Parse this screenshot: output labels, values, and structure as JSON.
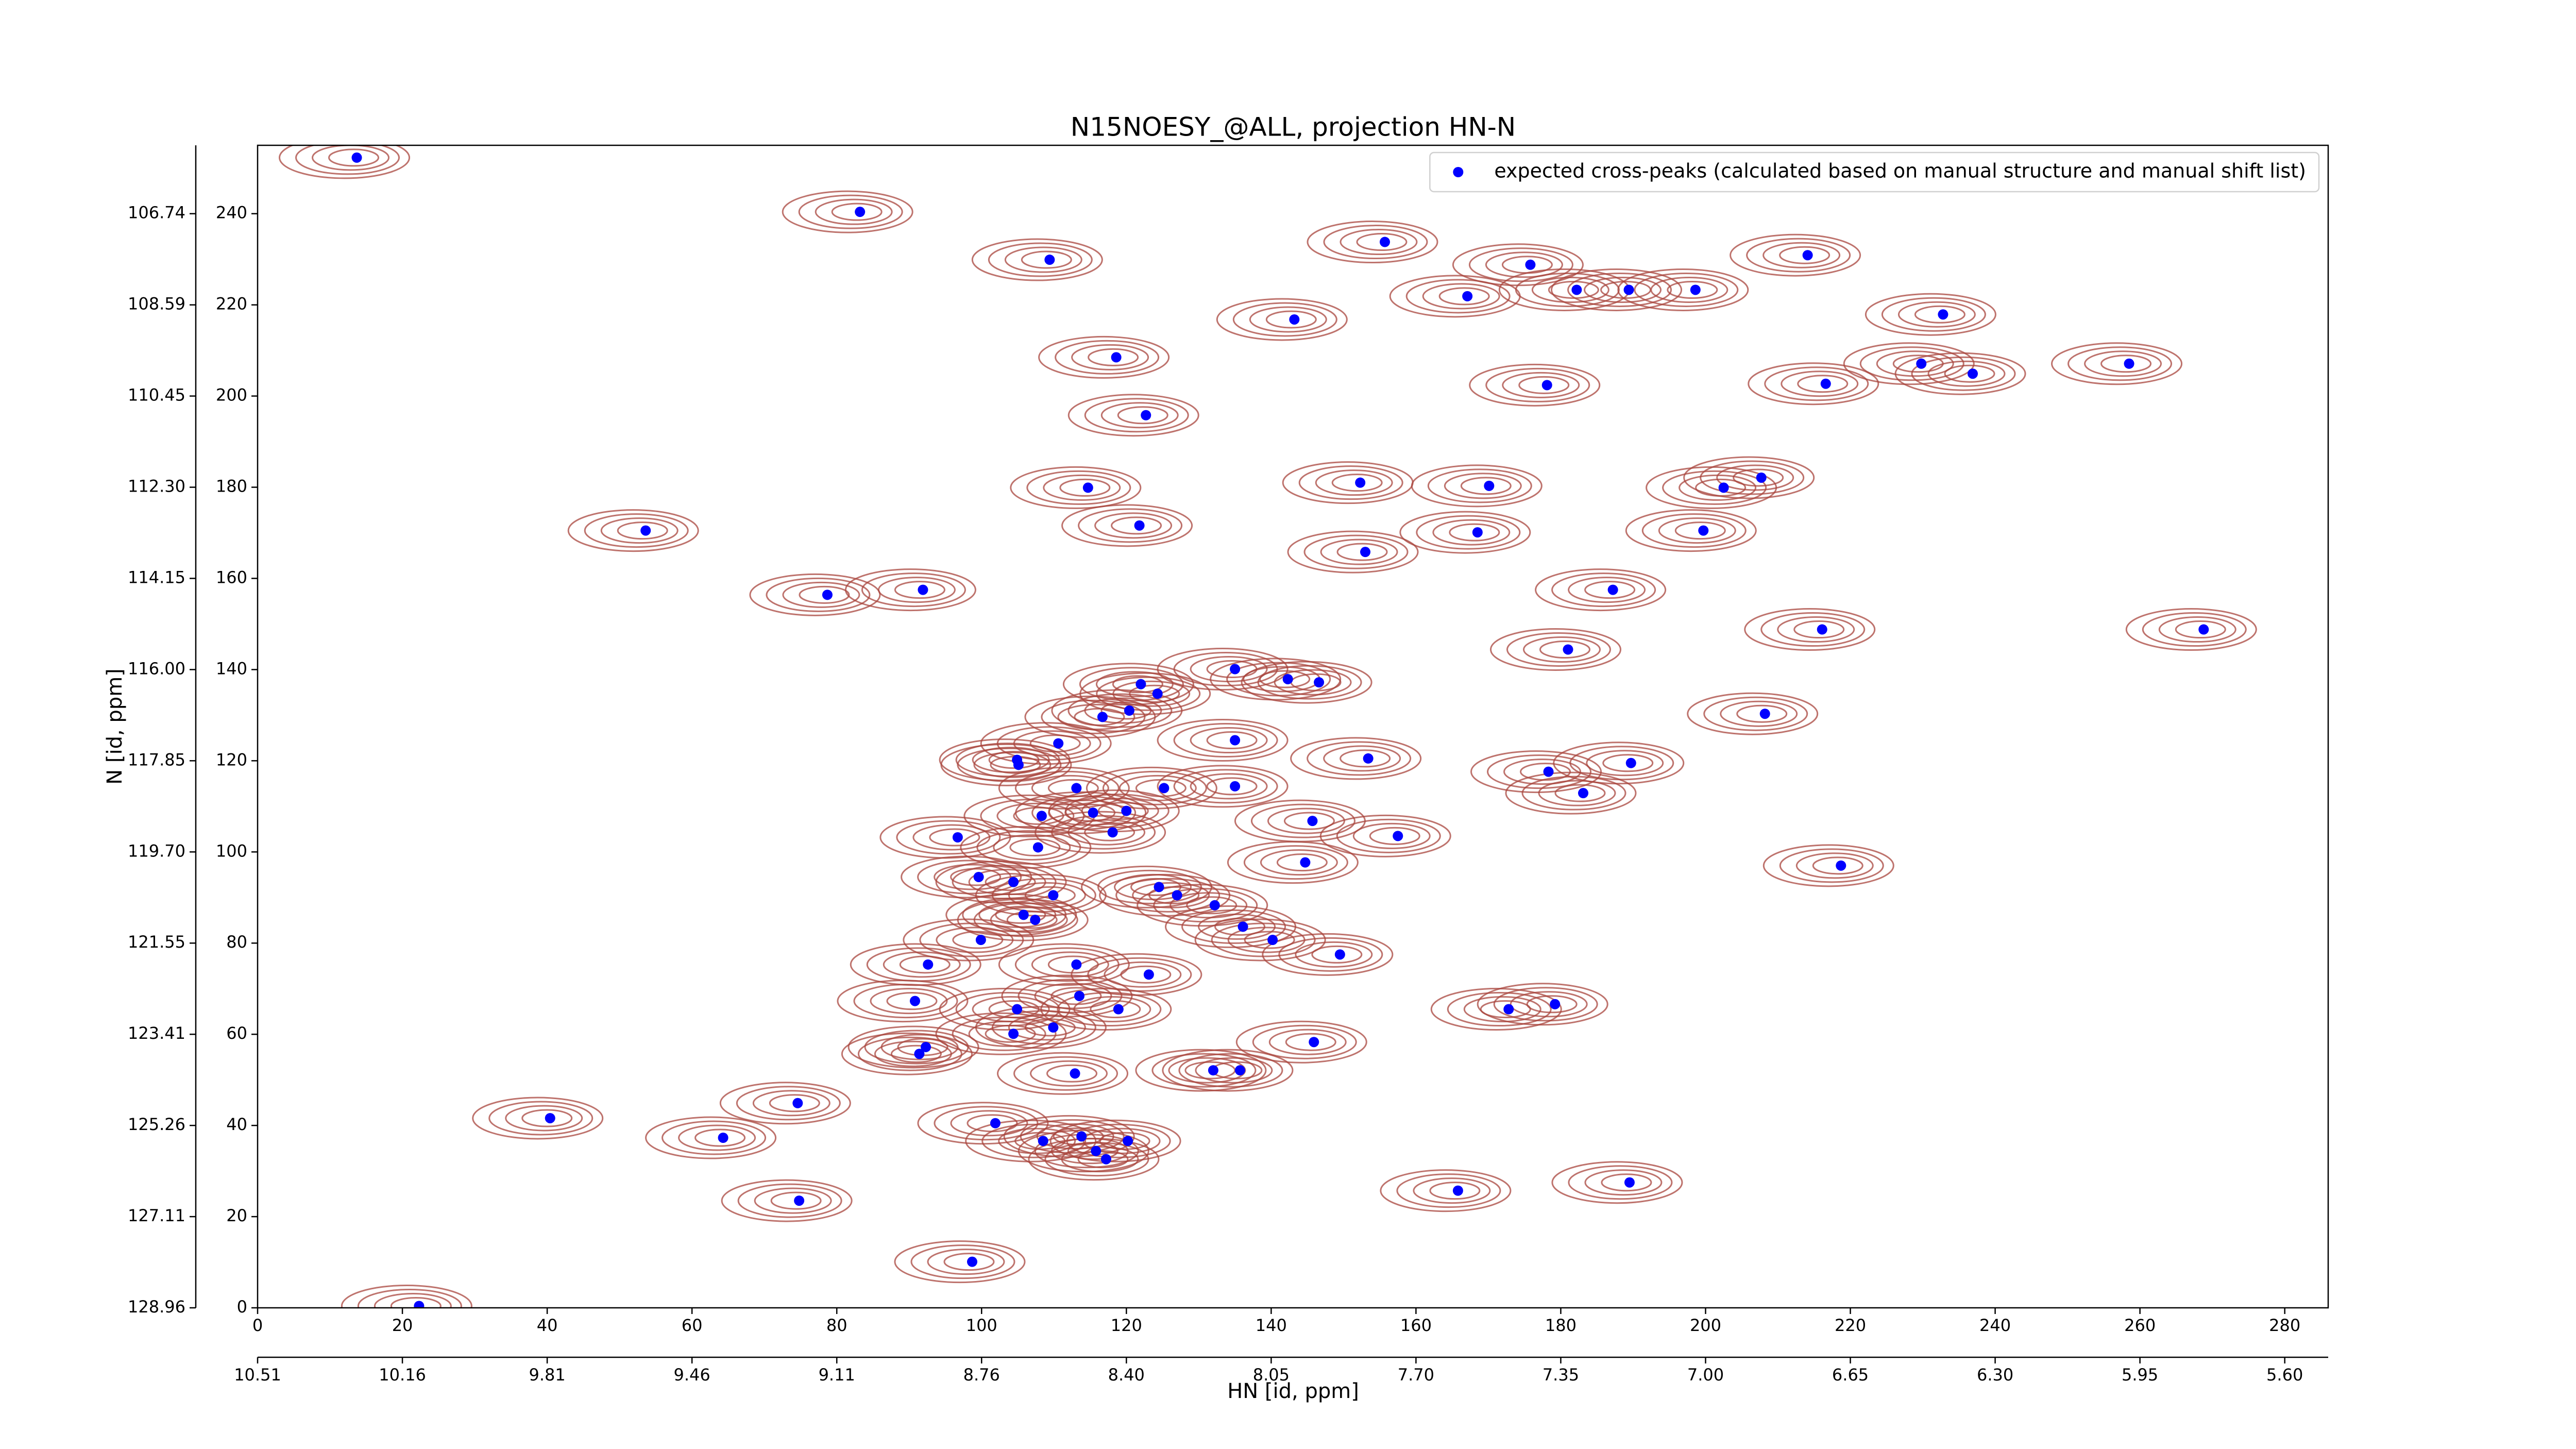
{
  "chart_data": {
    "type": "scatter",
    "title": "N15NOESY_@ALL, projection HN-N",
    "xlabel": "HN [id, ppm]",
    "ylabel": "N [id, ppm]",
    "xlim": [
      0,
      286
    ],
    "ylim": [
      0,
      255
    ],
    "xticks": [
      0,
      20,
      40,
      60,
      80,
      100,
      120,
      140,
      160,
      180,
      200,
      220,
      240,
      260,
      280
    ],
    "yticks": [
      0,
      20,
      40,
      60,
      80,
      100,
      120,
      140,
      160,
      180,
      200,
      220,
      240
    ],
    "x2ticks": [
      {
        "value": 0,
        "label": "10.51"
      },
      {
        "value": 20,
        "label": "10.16"
      },
      {
        "value": 40,
        "label": "9.81"
      },
      {
        "value": 60,
        "label": "9.46"
      },
      {
        "value": 80,
        "label": "9.11"
      },
      {
        "value": 100,
        "label": "8.76"
      },
      {
        "value": 120,
        "label": "8.40"
      },
      {
        "value": 140,
        "label": "8.05"
      },
      {
        "value": 160,
        "label": "7.70"
      },
      {
        "value": 180,
        "label": "7.35"
      },
      {
        "value": 200,
        "label": "7.00"
      },
      {
        "value": 220,
        "label": "6.65"
      },
      {
        "value": 240,
        "label": "6.30"
      },
      {
        "value": 260,
        "label": "5.95"
      },
      {
        "value": 280,
        "label": "5.60"
      }
    ],
    "y2ticks": [
      {
        "value": 0,
        "label": "128.96"
      },
      {
        "value": 20,
        "label": "127.11"
      },
      {
        "value": 40,
        "label": "125.26"
      },
      {
        "value": 60,
        "label": "123.41"
      },
      {
        "value": 80,
        "label": "121.55"
      },
      {
        "value": 100,
        "label": "119.70"
      },
      {
        "value": 120,
        "label": "117.85"
      },
      {
        "value": 140,
        "label": "116.00"
      },
      {
        "value": 160,
        "label": "114.15"
      },
      {
        "value": 180,
        "label": "112.30"
      },
      {
        "value": 200,
        "label": "110.45"
      },
      {
        "value": 220,
        "label": "108.59"
      },
      {
        "value": 240,
        "label": "106.74"
      }
    ],
    "legend": "upper right",
    "contour_color": "#a8443c",
    "series": [
      {
        "name": "expected cross-peaks (calculated based on manual structure and manual shift list)",
        "color": "#0000ff",
        "x": [
          13.7,
          83.2,
          109.4,
          155.7,
          175.8,
          167.1,
          182.2,
          189.4,
          198.6,
          214.1,
          143.2,
          232.8,
          118.6,
          229.8,
          236.9,
          258.5,
          178.1,
          216.6,
          122.7,
          114.7,
          152.3,
          170.1,
          202.5,
          207.7,
          53.6,
          121.8,
          168.5,
          199.7,
          153.0,
          78.7,
          91.9,
          187.2,
          216.1,
          268.8,
          181.0,
          135.0,
          142.3,
          146.6,
          122.0,
          124.3,
          120.4,
          116.7,
          208.2,
          135.0,
          110.6,
          104.9,
          105.1,
          153.4,
          178.3,
          189.7,
          183.1,
          135.0,
          113.1,
          125.2,
          115.4,
          120.0,
          108.3,
          118.1,
          145.7,
          157.5,
          96.7,
          107.8,
          144.7,
          218.7,
          99.6,
          104.4,
          124.5,
          127.0,
          109.9,
          132.2,
          105.8,
          107.4,
          136.1,
          140.2,
          99.9,
          149.5,
          113.1,
          92.6,
          123.1,
          90.8,
          113.5,
          104.9,
          118.9,
          172.8,
          179.2,
          109.9,
          104.4,
          145.9,
          92.3,
          91.4,
          132.0,
          135.7,
          112.9,
          74.6,
          40.4,
          101.9,
          64.3,
          108.5,
          113.8,
          120.2,
          115.8,
          117.2,
          165.8,
          189.5,
          74.8,
          98.7,
          22.3
        ],
        "values": [
          252.3,
          240.4,
          229.9,
          233.8,
          228.8,
          221.9,
          223.3,
          223.3,
          223.3,
          230.9,
          216.8,
          217.9,
          208.5,
          207.1,
          204.9,
          207.1,
          202.4,
          202.7,
          195.8,
          179.9,
          181.0,
          180.3,
          179.9,
          182.1,
          170.5,
          171.6,
          170.1,
          170.5,
          165.8,
          156.4,
          157.5,
          157.5,
          148.8,
          148.8,
          144.4,
          140.1,
          137.9,
          137.2,
          136.8,
          134.7,
          131.0,
          129.6,
          130.3,
          124.5,
          123.8,
          120.2,
          119.1,
          120.5,
          117.6,
          119.5,
          112.9,
          114.4,
          114.0,
          114.0,
          108.6,
          109.0,
          107.9,
          104.3,
          106.8,
          103.5,
          103.2,
          101.0,
          97.7,
          97.0,
          94.5,
          93.4,
          92.3,
          90.5,
          90.5,
          88.3,
          86.2,
          85.1,
          83.6,
          80.7,
          80.7,
          77.5,
          75.3,
          75.3,
          73.1,
          67.3,
          68.4,
          65.5,
          65.5,
          65.5,
          66.6,
          61.5,
          60.1,
          58.3,
          57.2,
          55.7,
          52.1,
          52.1,
          51.4,
          44.9,
          41.6,
          40.5,
          37.3,
          36.6,
          37.6,
          36.6,
          34.4,
          32.6,
          25.7,
          27.5,
          23.5,
          10.1,
          0.4
        ]
      }
    ]
  }
}
